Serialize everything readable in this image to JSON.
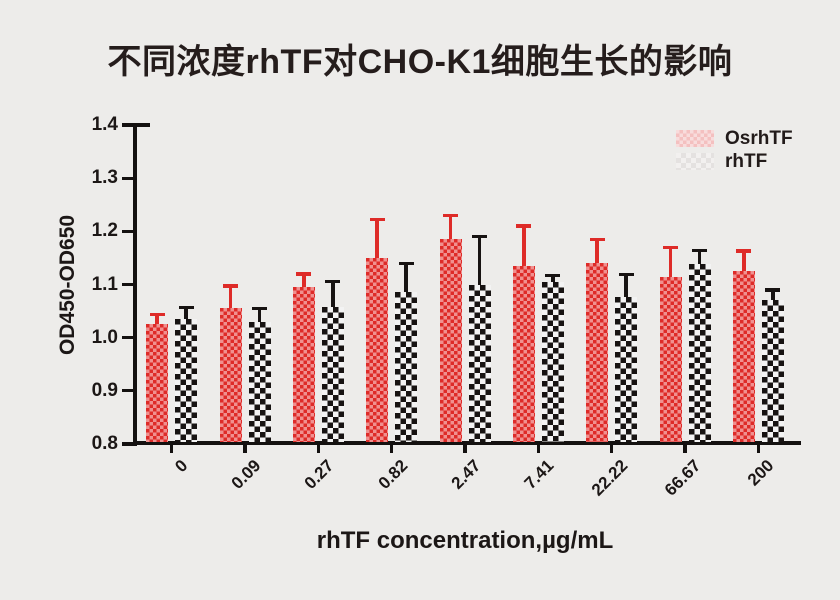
{
  "window": {
    "background": "#edecea"
  },
  "title": "不同浓度rhTF对CHO-K1细胞生长的影响",
  "legend": {
    "items": [
      {
        "label": "OsrhTF",
        "swatch_color": "#f8dcdc"
      },
      {
        "label": "rhTF",
        "swatch_color": "#f2f0ef"
      }
    ]
  },
  "chart_data": {
    "type": "bar",
    "title": "不同浓度rhTF对CHO-K1细胞生长的影响",
    "xlabel": "rhTF concentration,µg/mL",
    "ylabel": "OD450-OD650",
    "ylim": [
      0.8,
      1.4
    ],
    "ytick_step": 0.1,
    "yticks": [
      "0.8",
      "0.9",
      "1.0",
      "1.1",
      "1.2",
      "1.3",
      "1.4"
    ],
    "categories": [
      "0",
      "0.09",
      "0.27",
      "0.82",
      "2.47",
      "7.41",
      "22.22",
      "66.67",
      "200"
    ],
    "series": [
      {
        "name": "OsrhTF",
        "color": "#de2b28",
        "pattern": "fine-checker",
        "values": [
          1.025,
          1.055,
          1.095,
          1.15,
          1.185,
          1.135,
          1.14,
          1.115,
          1.125
        ],
        "errors": [
          0.018,
          0.042,
          0.025,
          0.072,
          0.045,
          0.075,
          0.045,
          0.055,
          0.038
        ]
      },
      {
        "name": "rhTF",
        "color": "#171312",
        "pattern": "checkerboard",
        "values": [
          1.035,
          1.03,
          1.058,
          1.085,
          1.1,
          1.105,
          1.077,
          1.138,
          1.07
        ],
        "errors": [
          0.022,
          0.025,
          0.048,
          0.055,
          0.09,
          0.012,
          0.042,
          0.026,
          0.02
        ]
      }
    ],
    "error_bars": "upper",
    "grid": false,
    "legend_position": "top-right"
  }
}
